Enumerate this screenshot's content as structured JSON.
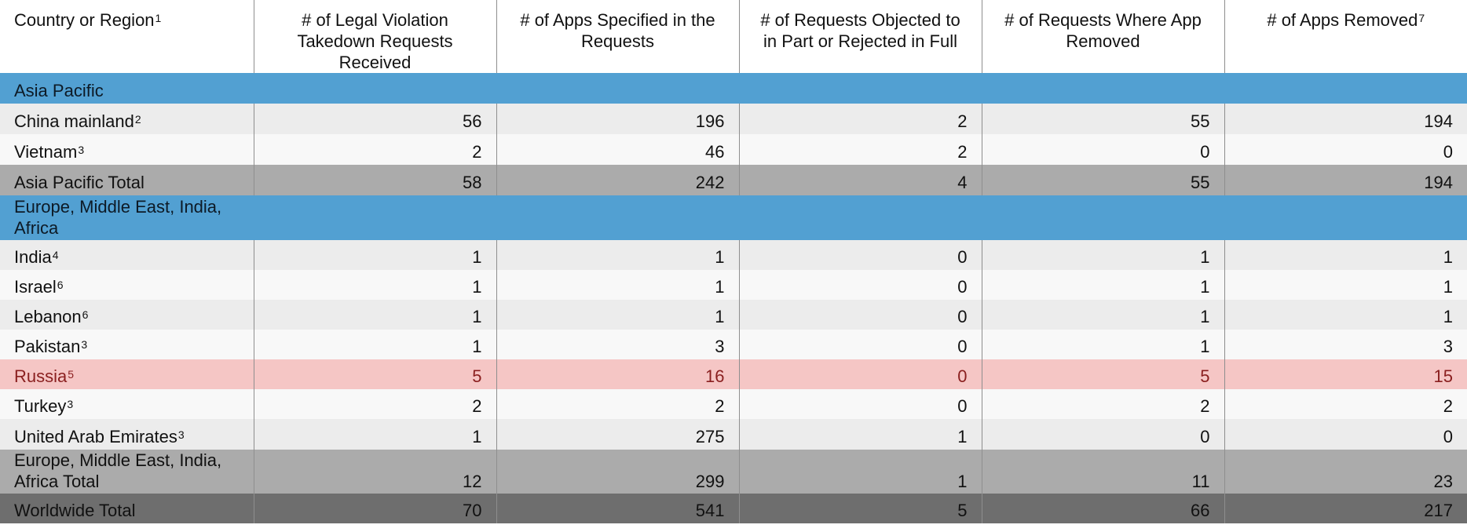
{
  "headers": {
    "col0": "Country or Region",
    "col0_sup": "1",
    "col1": "# of Legal Violation Takedown Requests Received",
    "col2": "# of Apps Specified in the Requests",
    "col3": "# of Requests Objected to in Part or Rejected in Full",
    "col4": "# of Requests Where App Removed",
    "col5": "# of Apps Removed",
    "col5_sup": "7"
  },
  "sections": {
    "asia_pacific": "Asia Pacific",
    "emea": "Europe, Middle East, India, Africa"
  },
  "rows": {
    "china": {
      "name": "China mainland",
      "sup": "2",
      "v": [
        "56",
        "196",
        "2",
        "55",
        "194"
      ]
    },
    "vietnam": {
      "name": "Vietnam",
      "sup": "3",
      "v": [
        "2",
        "46",
        "2",
        "0",
        "0"
      ]
    },
    "ap_total": {
      "name": "Asia Pacific Total",
      "v": [
        "58",
        "242",
        "4",
        "55",
        "194"
      ]
    },
    "india": {
      "name": "India",
      "sup": "4",
      "v": [
        "1",
        "1",
        "0",
        "1",
        "1"
      ]
    },
    "israel": {
      "name": "Israel",
      "sup": "6",
      "v": [
        "1",
        "1",
        "0",
        "1",
        "1"
      ]
    },
    "lebanon": {
      "name": "Lebanon",
      "sup": "6",
      "v": [
        "1",
        "1",
        "0",
        "1",
        "1"
      ]
    },
    "pakistan": {
      "name": "Pakistan",
      "sup": "3",
      "v": [
        "1",
        "3",
        "0",
        "1",
        "3"
      ]
    },
    "russia": {
      "name": "Russia",
      "sup": "5",
      "v": [
        "5",
        "16",
        "0",
        "5",
        "15"
      ]
    },
    "turkey": {
      "name": "Turkey",
      "sup": "3",
      "v": [
        "2",
        "2",
        "0",
        "2",
        "2"
      ]
    },
    "uae": {
      "name": "United Arab Emirates",
      "sup": "3",
      "v": [
        "1",
        "275",
        "1",
        "0",
        "0"
      ]
    },
    "emea_total": {
      "name": "Europe, Middle East, India, Africa Total",
      "v": [
        "12",
        "299",
        "1",
        "11",
        "23"
      ]
    },
    "world_total": {
      "name": "Worldwide Total",
      "v": [
        "70",
        "541",
        "5",
        "66",
        "217"
      ]
    }
  },
  "colors": {
    "region_header": "#52a0d2",
    "subtotal": "#ababab",
    "highlight_row": "#f5c6c5",
    "worldwide_total": "#6e6e6e"
  }
}
